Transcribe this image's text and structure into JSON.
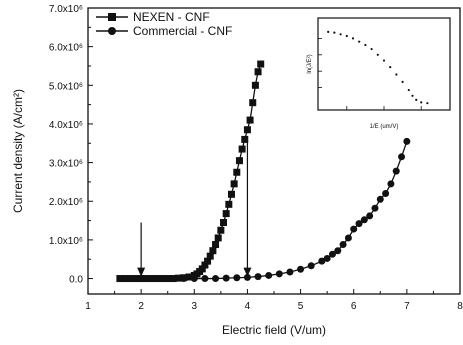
{
  "chart_data": {
    "type": "scatter",
    "xlabel": "Electric field (V/um)",
    "ylabel": "Current density (A/cm²)",
    "xlim": [
      1,
      8
    ],
    "ylim": [
      -0.4,
      7.0
    ],
    "x_ticks": [
      "1",
      "2",
      "3",
      "4",
      "5",
      "6",
      "7",
      "8"
    ],
    "y_ticks": [
      "0.0",
      "1.0x10⁶",
      "2.0x10⁶",
      "3.0x10⁶",
      "4.0x10⁶",
      "5.0x10⁶",
      "6.0x10⁶",
      "7.0x10⁶"
    ],
    "series": [
      {
        "name": "NEXEN - CNF",
        "marker": "square",
        "color": "#111111",
        "points": [
          [
            1.6,
            0
          ],
          [
            1.7,
            0
          ],
          [
            1.8,
            0
          ],
          [
            1.9,
            0
          ],
          [
            2.0,
            0
          ],
          [
            2.1,
            0
          ],
          [
            2.2,
            0
          ],
          [
            2.3,
            0
          ],
          [
            2.4,
            0
          ],
          [
            2.5,
            0
          ],
          [
            2.6,
            0
          ],
          [
            2.7,
            0.01
          ],
          [
            2.8,
            0.02
          ],
          [
            2.9,
            0.04
          ],
          [
            3.0,
            0.08
          ],
          [
            3.05,
            0.12
          ],
          [
            3.1,
            0.18
          ],
          [
            3.15,
            0.25
          ],
          [
            3.2,
            0.35
          ],
          [
            3.25,
            0.45
          ],
          [
            3.3,
            0.58
          ],
          [
            3.35,
            0.72
          ],
          [
            3.4,
            0.88
          ],
          [
            3.45,
            1.05
          ],
          [
            3.5,
            1.25
          ],
          [
            3.55,
            1.45
          ],
          [
            3.6,
            1.68
          ],
          [
            3.65,
            1.92
          ],
          [
            3.7,
            2.18
          ],
          [
            3.75,
            2.45
          ],
          [
            3.8,
            2.75
          ],
          [
            3.85,
            3.05
          ],
          [
            3.9,
            3.35
          ],
          [
            3.95,
            3.6
          ],
          [
            4.0,
            3.85
          ],
          [
            4.05,
            4.1
          ],
          [
            4.1,
            4.55
          ],
          [
            4.15,
            5.0
          ],
          [
            4.2,
            5.35
          ],
          [
            4.25,
            5.55
          ]
        ]
      },
      {
        "name": "Commercial - CNF",
        "marker": "circle",
        "color": "#111111",
        "points": [
          [
            2.0,
            0
          ],
          [
            2.2,
            0
          ],
          [
            2.4,
            0
          ],
          [
            2.6,
            0
          ],
          [
            2.8,
            0
          ],
          [
            3.0,
            0
          ],
          [
            3.2,
            0
          ],
          [
            3.4,
            0
          ],
          [
            3.6,
            0.01
          ],
          [
            3.8,
            0.02
          ],
          [
            4.0,
            0.03
          ],
          [
            4.2,
            0.05
          ],
          [
            4.4,
            0.08
          ],
          [
            4.6,
            0.12
          ],
          [
            4.8,
            0.17
          ],
          [
            5.0,
            0.24
          ],
          [
            5.2,
            0.33
          ],
          [
            5.4,
            0.45
          ],
          [
            5.5,
            0.52
          ],
          [
            5.6,
            0.63
          ],
          [
            5.7,
            0.72
          ],
          [
            5.8,
            0.88
          ],
          [
            5.9,
            1.05
          ],
          [
            6.0,
            1.28
          ],
          [
            6.1,
            1.42
          ],
          [
            6.2,
            1.52
          ],
          [
            6.3,
            1.62
          ],
          [
            6.4,
            1.82
          ],
          [
            6.5,
            2.05
          ],
          [
            6.6,
            2.2
          ],
          [
            6.7,
            2.45
          ],
          [
            6.8,
            2.78
          ],
          [
            6.9,
            3.15
          ],
          [
            7.0,
            3.55
          ]
        ]
      }
    ],
    "arrows": [
      {
        "x": 2.0,
        "y_from": 1.45,
        "y_to": 0.05
      },
      {
        "x": 4.0,
        "y_from": 3.55,
        "y_to": 0.05
      }
    ],
    "legend_position": "top-left",
    "grid": false,
    "inset": {
      "type": "scatter",
      "ylabel": "ln(J/E²)",
      "xlabel": "1/E (um/V)",
      "points": [
        [
          0.05,
          0.88
        ],
        [
          0.1,
          0.87
        ],
        [
          0.15,
          0.85
        ],
        [
          0.2,
          0.83
        ],
        [
          0.25,
          0.8
        ],
        [
          0.3,
          0.76
        ],
        [
          0.35,
          0.72
        ],
        [
          0.4,
          0.67
        ],
        [
          0.45,
          0.6
        ],
        [
          0.5,
          0.53
        ],
        [
          0.55,
          0.45
        ],
        [
          0.6,
          0.36
        ],
        [
          0.65,
          0.27
        ],
        [
          0.7,
          0.17
        ],
        [
          0.73,
          0.1
        ],
        [
          0.76,
          0.05
        ],
        [
          0.8,
          0.02
        ],
        [
          0.85,
          0.01
        ]
      ]
    }
  },
  "legend": {
    "nexen": "NEXEN - CNF",
    "commercial": "Commercial - CNF"
  },
  "axes": {
    "xlabel": "Electric field (V/um)",
    "ylabel": "Current density (A/cm²)"
  }
}
